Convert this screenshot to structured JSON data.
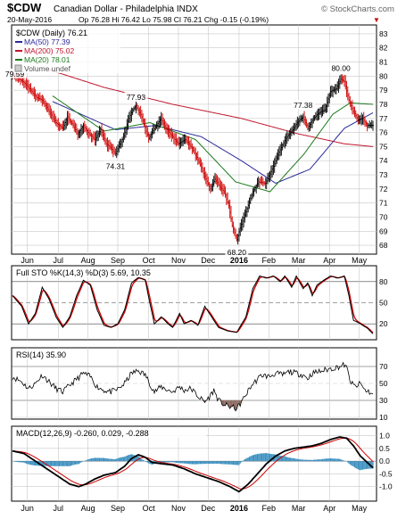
{
  "header": {
    "symbol": "$CDW",
    "name": "Canadian Dollar - Philadelphia INDX",
    "date": "20-May-2016",
    "quote": "Op 76.28 Hi 76.42 Lo 75.98 Cl 76.21 Chg -0.15 (-0.19%)",
    "down_arrow": "▼",
    "brand": "© StockCharts.com"
  },
  "colors": {
    "price": "#000000",
    "ma50": "#2a2a9a",
    "ma200": "#c0142c",
    "ma20": "#1a7a1a",
    "stok": "#000000",
    "stod": "#cc0000",
    "rsi": "#000000",
    "rsi_fill": "#8c6a60",
    "macd": "#000000",
    "signal": "#cc0000",
    "hist": "#3a8fbf",
    "grid": "#c8c8c8"
  },
  "chart_data": [
    {
      "type": "ohlc",
      "title": "$CDW (Daily) 76.21",
      "legend": [
        {
          "label": "MA(50) 77.39",
          "color": "#2a2a9a"
        },
        {
          "label": "MA(200) 75.02",
          "color": "#c0142c"
        },
        {
          "label": "MA(20) 78.01",
          "color": "#1a7a1a"
        },
        {
          "label": "Volume undef",
          "color": "#888888"
        }
      ],
      "x_labels": [
        "Jun",
        "Jul",
        "Aug",
        "Sep",
        "Oct",
        "Nov",
        "Dec",
        "2016",
        "Feb",
        "Mar",
        "Apr",
        "May"
      ],
      "ylim": [
        67.5,
        83.5
      ],
      "yticks": [
        68,
        69,
        70,
        71,
        72,
        73,
        74,
        75,
        76,
        77,
        78,
        79,
        80,
        81,
        82,
        83
      ],
      "price_keypoints": [
        [
          0,
          80.2
        ],
        [
          6,
          79.8
        ],
        [
          12,
          79.4
        ],
        [
          16,
          79.0
        ],
        [
          21,
          78.5
        ],
        [
          26,
          78.3
        ],
        [
          32,
          77.5
        ],
        [
          38,
          76.7
        ],
        [
          44,
          76.3
        ],
        [
          48,
          77.1
        ],
        [
          53,
          76.5
        ],
        [
          57,
          75.9
        ],
        [
          62,
          76.5
        ],
        [
          66,
          76.0
        ],
        [
          72,
          75.5
        ],
        [
          77,
          76.2
        ],
        [
          82,
          75.2
        ],
        [
          86,
          74.9
        ],
        [
          90,
          74.5
        ],
        [
          96,
          75.5
        ],
        [
          101,
          76.8
        ],
        [
          105,
          77.6
        ],
        [
          108,
          77.9
        ],
        [
          113,
          77.1
        ],
        [
          119,
          75.6
        ],
        [
          125,
          76.4
        ],
        [
          130,
          77.0
        ],
        [
          134,
          76.3
        ],
        [
          139,
          75.8
        ],
        [
          145,
          75.2
        ],
        [
          151,
          75.5
        ],
        [
          157,
          74.9
        ],
        [
          163,
          73.9
        ],
        [
          168,
          72.9
        ],
        [
          173,
          72.0
        ],
        [
          177,
          72.7
        ],
        [
          181,
          72.2
        ],
        [
          185,
          71.8
        ],
        [
          189,
          70.8
        ],
        [
          192,
          69.4
        ],
        [
          196,
          68.4
        ],
        [
          200,
          69.5
        ],
        [
          205,
          70.6
        ],
        [
          210,
          71.8
        ],
        [
          215,
          72.5
        ],
        [
          221,
          72.4
        ],
        [
          227,
          73.4
        ],
        [
          233,
          74.6
        ],
        [
          239,
          75.6
        ],
        [
          245,
          76.2
        ],
        [
          250,
          76.8
        ],
        [
          254,
          77.1
        ],
        [
          258,
          76.3
        ],
        [
          263,
          77.0
        ],
        [
          268,
          77.4
        ],
        [
          273,
          77.6
        ],
        [
          278,
          78.9
        ],
        [
          283,
          79.1
        ],
        [
          287,
          79.8
        ],
        [
          290,
          79.6
        ],
        [
          294,
          78.3
        ],
        [
          298,
          77.5
        ],
        [
          302,
          76.9
        ],
        [
          306,
          77.0
        ],
        [
          310,
          76.5
        ],
        [
          315,
          76.5
        ]
      ],
      "ma20_keypoints": [
        [
          35,
          78.6
        ],
        [
          80,
          76.1
        ],
        [
          120,
          76.7
        ],
        [
          160,
          75.5
        ],
        [
          195,
          72.5
        ],
        [
          225,
          71.8
        ],
        [
          255,
          74.5
        ],
        [
          280,
          77.3
        ],
        [
          295,
          78.1
        ],
        [
          315,
          78.0
        ]
      ],
      "ma50_keypoints": [
        [
          35,
          78.2
        ],
        [
          90,
          76.2
        ],
        [
          125,
          76.5
        ],
        [
          165,
          75.7
        ],
        [
          200,
          74.0
        ],
        [
          230,
          72.4
        ],
        [
          260,
          73.4
        ],
        [
          290,
          76.3
        ],
        [
          315,
          77.4
        ]
      ],
      "ma200_keypoints": [
        [
          30,
          80.5
        ],
        [
          80,
          79.2
        ],
        [
          140,
          78.0
        ],
        [
          200,
          77.0
        ],
        [
          250,
          75.9
        ],
        [
          290,
          75.2
        ],
        [
          315,
          75.0
        ]
      ],
      "annotations": [
        {
          "label": "79.59",
          "idx": 2,
          "value": 79.59
        },
        {
          "label": "77.93",
          "idx": 108,
          "value": 77.93
        },
        {
          "label": "74.31",
          "idx": 90,
          "value": 74.31
        },
        {
          "label": "68.20",
          "idx": 196,
          "value": 68.2
        },
        {
          "label": "77.38",
          "idx": 254,
          "value": 77.38
        },
        {
          "label": "80.00",
          "idx": 287,
          "value": 80.0
        }
      ]
    },
    {
      "type": "line",
      "title": "Full STO %K(14,3) %D(3) 5.69, 10.35",
      "ylim": [
        0,
        100
      ],
      "yticks": [
        20,
        50,
        80
      ],
      "series": [
        {
          "name": "%K",
          "keypoints": [
            [
              0,
              60
            ],
            [
              8,
              45
            ],
            [
              14,
              20
            ],
            [
              20,
              35
            ],
            [
              26,
              72
            ],
            [
              32,
              55
            ],
            [
              38,
              30
            ],
            [
              44,
              15
            ],
            [
              50,
              30
            ],
            [
              56,
              60
            ],
            [
              62,
              82
            ],
            [
              68,
              75
            ],
            [
              74,
              40
            ],
            [
              80,
              18
            ],
            [
              86,
              15
            ],
            [
              92,
              20
            ],
            [
              98,
              40
            ],
            [
              104,
              78
            ],
            [
              110,
              86
            ],
            [
              116,
              82
            ],
            [
              120,
              50
            ],
            [
              124,
              20
            ],
            [
              130,
              30
            ],
            [
              136,
              20
            ],
            [
              140,
              15
            ],
            [
              146,
              35
            ],
            [
              150,
              20
            ],
            [
              156,
              25
            ],
            [
              162,
              18
            ],
            [
              168,
              45
            ],
            [
              174,
              30
            ],
            [
              180,
              15
            ],
            [
              188,
              10
            ],
            [
              196,
              8
            ],
            [
              204,
              30
            ],
            [
              210,
              70
            ],
            [
              216,
              88
            ],
            [
              222,
              85
            ],
            [
              228,
              88
            ],
            [
              234,
              80
            ],
            [
              238,
              88
            ],
            [
              244,
              72
            ],
            [
              248,
              88
            ],
            [
              254,
              70
            ],
            [
              258,
              78
            ],
            [
              262,
              60
            ],
            [
              266,
              75
            ],
            [
              272,
              82
            ],
            [
              278,
              88
            ],
            [
              284,
              85
            ],
            [
              290,
              88
            ],
            [
              294,
              60
            ],
            [
              298,
              25
            ],
            [
              302,
              22
            ],
            [
              306,
              18
            ],
            [
              310,
              14
            ],
            [
              315,
              6
            ]
          ]
        },
        {
          "name": "%D",
          "smooth_of": "%K"
        }
      ]
    },
    {
      "type": "line",
      "title": "RSI(14) 35.90",
      "ylim": [
        10,
        90
      ],
      "yticks": [
        10,
        30,
        50,
        70
      ],
      "series": [
        {
          "name": "RSI",
          "keypoints": [
            [
              0,
              58
            ],
            [
              8,
              52
            ],
            [
              14,
              44
            ],
            [
              20,
              50
            ],
            [
              26,
              60
            ],
            [
              32,
              52
            ],
            [
              38,
              44
            ],
            [
              44,
              40
            ],
            [
              50,
              48
            ],
            [
              56,
              55
            ],
            [
              62,
              62
            ],
            [
              68,
              58
            ],
            [
              74,
              46
            ],
            [
              80,
              42
            ],
            [
              86,
              40
            ],
            [
              92,
              43
            ],
            [
              98,
              50
            ],
            [
              104,
              62
            ],
            [
              110,
              65
            ],
            [
              116,
              60
            ],
            [
              120,
              50
            ],
            [
              124,
              40
            ],
            [
              130,
              46
            ],
            [
              136,
              42
            ],
            [
              140,
              40
            ],
            [
              146,
              46
            ],
            [
              150,
              42
            ],
            [
              156,
              44
            ],
            [
              162,
              35
            ],
            [
              168,
              28
            ],
            [
              172,
              34
            ],
            [
              176,
              42
            ],
            [
              180,
              30
            ],
            [
              186,
              24
            ],
            [
              192,
              22
            ],
            [
              196,
              20
            ],
            [
              202,
              32
            ],
            [
              208,
              46
            ],
            [
              212,
              52
            ],
            [
              218,
              60
            ],
            [
              224,
              58
            ],
            [
              230,
              62
            ],
            [
              236,
              60
            ],
            [
              242,
              64
            ],
            [
              248,
              62
            ],
            [
              254,
              60
            ],
            [
              258,
              56
            ],
            [
              262,
              62
            ],
            [
              268,
              64
            ],
            [
              274,
              66
            ],
            [
              280,
              68
            ],
            [
              286,
              70
            ],
            [
              290,
              72
            ],
            [
              292,
              68
            ],
            [
              296,
              50
            ],
            [
              300,
              46
            ],
            [
              304,
              50
            ],
            [
              308,
              42
            ],
            [
              312,
              40
            ],
            [
              315,
              36
            ]
          ]
        }
      ]
    },
    {
      "type": "line",
      "title": "MACD(12,26,9) -0.260, 0.029, -0.288",
      "ylim": [
        -1.5,
        1.3
      ],
      "yticks": [
        -1.0,
        -0.5,
        0.0,
        0.5,
        1.0
      ],
      "x_labels": [
        "Jun",
        "Jul",
        "Aug",
        "Sep",
        "Oct",
        "Nov",
        "Dec",
        "2016",
        "Feb",
        "Mar",
        "Apr",
        "May"
      ],
      "series": [
        {
          "name": "MACD",
          "keypoints": [
            [
              0,
              0.4
            ],
            [
              10,
              0.3
            ],
            [
              20,
              0.0
            ],
            [
              30,
              -0.3
            ],
            [
              40,
              -0.6
            ],
            [
              50,
              -0.9
            ],
            [
              58,
              -1.0
            ],
            [
              64,
              -0.9
            ],
            [
              72,
              -0.7
            ],
            [
              80,
              -0.55
            ],
            [
              90,
              -0.45
            ],
            [
              98,
              -0.2
            ],
            [
              104,
              0.1
            ],
            [
              110,
              0.25
            ],
            [
              116,
              0.15
            ],
            [
              122,
              -0.05
            ],
            [
              130,
              -0.1
            ],
            [
              140,
              -0.15
            ],
            [
              150,
              -0.3
            ],
            [
              160,
              -0.5
            ],
            [
              170,
              -0.65
            ],
            [
              180,
              -0.8
            ],
            [
              190,
              -1.0
            ],
            [
              198,
              -1.2
            ],
            [
              206,
              -0.9
            ],
            [
              214,
              -0.5
            ],
            [
              222,
              -0.1
            ],
            [
              230,
              0.2
            ],
            [
              238,
              0.4
            ],
            [
              246,
              0.5
            ],
            [
              254,
              0.55
            ],
            [
              262,
              0.6
            ],
            [
              270,
              0.7
            ],
            [
              278,
              0.85
            ],
            [
              286,
              0.95
            ],
            [
              292,
              0.9
            ],
            [
              298,
              0.6
            ],
            [
              304,
              0.2
            ],
            [
              310,
              -0.05
            ],
            [
              315,
              -0.26
            ]
          ]
        },
        {
          "name": "Signal",
          "ema_of": "MACD",
          "period": 9
        },
        {
          "name": "Histogram",
          "diff_of": [
            "MACD",
            "Signal"
          ]
        }
      ]
    }
  ]
}
